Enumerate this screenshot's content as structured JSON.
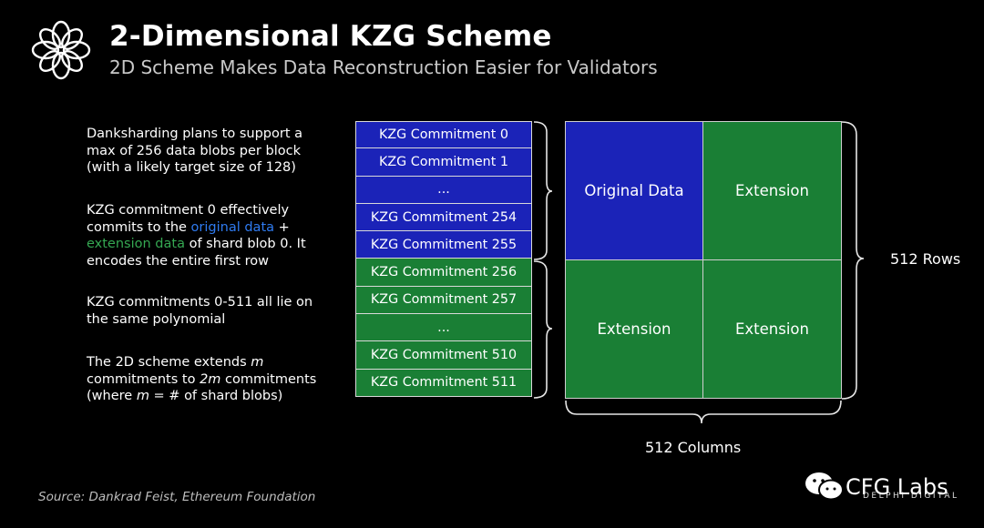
{
  "title": "2-Dimensional KZG Scheme",
  "subtitle": "2D Scheme Makes Data Reconstruction Easier for Validators",
  "paragraphs": {
    "p1": "Danksharding plans to support a max of 256 data blobs per block (with a likely target size of 128)",
    "p2": {
      "a": "KZG commitment 0 effectively commits to the ",
      "b": "original data",
      "c": " + ",
      "d": "extension data",
      "e": " of shard blob 0. It encodes the entire first row"
    },
    "p3": "KZG commitments 0-511 all lie on the same polynomial",
    "p4": {
      "a": "The 2D scheme extends ",
      "b": "m",
      "c": " commitments to ",
      "d": "2m",
      "e": " commitments (where ",
      "f": "m",
      "g": " = # of shard blobs)"
    }
  },
  "commitments": [
    "KZG Commitment 0",
    "KZG Commitment 1",
    "...",
    "KZG Commitment 254",
    "KZG Commitment 255",
    "KZG Commitment 256",
    "KZG Commitment 257",
    "...",
    "KZG Commitment 510",
    "KZG Commitment 511"
  ],
  "grid": {
    "top_left": "Original Data",
    "top_right": "Extension",
    "bottom_left": "Extension",
    "bottom_right": "Extension"
  },
  "rows_label": "512 Rows",
  "columns_label": "512 Columns",
  "source": "Source: Dankrad Feist, Ethereum Foundation",
  "watermark": {
    "text": "CFG Labs",
    "sub": "DELPHI DIGITAL"
  },
  "colors": {
    "blue_fill": "#1b23b8",
    "green_fill": "#1a7f35",
    "blue_text": "#2f7bf0",
    "green_text": "#35a852"
  }
}
